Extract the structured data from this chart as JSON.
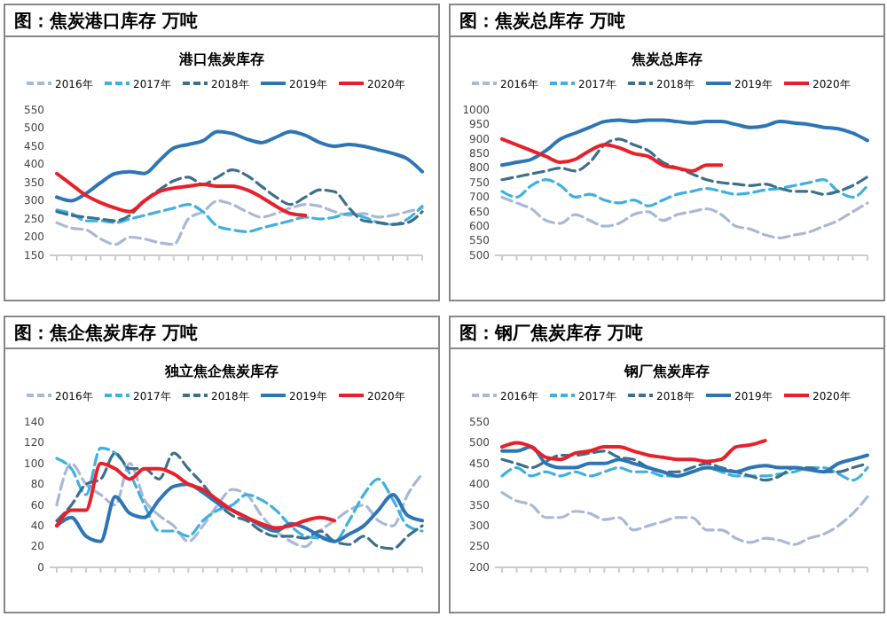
{
  "chart_data": [
    {
      "type": "line",
      "title": "图：焦炭港口库存 万吨",
      "subtitle": "港口焦炭库存",
      "categories": [
        null,
        null,
        null,
        null,
        null,
        null,
        null,
        null,
        null,
        null,
        null,
        null,
        null,
        null,
        null,
        null,
        null,
        null,
        null,
        null,
        null,
        null,
        null,
        null,
        null,
        null
      ],
      "ylim": [
        150,
        550
      ],
      "yticks": [
        150,
        200,
        250,
        300,
        350,
        400,
        450,
        500,
        550
      ],
      "tick_labels": "y",
      "legend": "top",
      "grid": false,
      "marker": "none",
      "series": [
        {
          "name": "2016年",
          "color": "#a9b8d6",
          "line_style": "dashed",
          "values": [
            240,
            225,
            220,
            195,
            180,
            200,
            195,
            185,
            180,
            250,
            270,
            300,
            290,
            270,
            255,
            265,
            280,
            290,
            285,
            270,
            260,
            265,
            255,
            260,
            270,
            280
          ]
        },
        {
          "name": "2017年",
          "color": "#3fb0e0",
          "line_style": "dashed",
          "values": [
            275,
            265,
            245,
            245,
            240,
            250,
            260,
            270,
            280,
            290,
            270,
            230,
            220,
            215,
            225,
            235,
            245,
            255,
            250,
            255,
            265,
            255,
            240,
            235,
            250,
            285
          ]
        },
        {
          "name": "2018年",
          "color": "#3d6f8c",
          "line_style": "dashed",
          "values": [
            270,
            260,
            255,
            250,
            245,
            260,
            300,
            330,
            355,
            365,
            345,
            365,
            385,
            370,
            340,
            310,
            290,
            310,
            330,
            325,
            280,
            245,
            240,
            235,
            240,
            270
          ]
        },
        {
          "name": "2019年",
          "color": "#2e75b6",
          "line_style": "solid",
          "values": [
            310,
            300,
            320,
            350,
            375,
            380,
            375,
            410,
            445,
            455,
            465,
            490,
            485,
            470,
            460,
            475,
            490,
            480,
            460,
            450,
            455,
            450,
            440,
            430,
            415,
            380
          ]
        },
        {
          "name": "2020年",
          "color": "#e8202a",
          "line_style": "solid",
          "values": [
            375,
            345,
            315,
            295,
            280,
            270,
            300,
            325,
            335,
            340,
            345,
            340,
            340,
            330,
            310,
            285,
            265,
            260,
            null,
            null,
            null,
            null,
            null,
            null,
            null,
            null
          ]
        }
      ]
    },
    {
      "type": "line",
      "title": "图：焦炭总库存 万吨",
      "subtitle": "焦炭总库存",
      "categories": [
        null,
        null,
        null,
        null,
        null,
        null,
        null,
        null,
        null,
        null,
        null,
        null,
        null,
        null,
        null,
        null,
        null,
        null,
        null,
        null,
        null,
        null,
        null,
        null,
        null,
        null
      ],
      "ylim": [
        500,
        1000
      ],
      "yticks": [
        500,
        550,
        600,
        650,
        700,
        750,
        800,
        850,
        900,
        950,
        1000
      ],
      "tick_labels": "y",
      "legend": "top",
      "grid": false,
      "marker": "none",
      "series": [
        {
          "name": "2016年",
          "color": "#a9b8d6",
          "line_style": "dashed",
          "values": [
            700,
            680,
            660,
            620,
            610,
            640,
            620,
            600,
            610,
            640,
            650,
            620,
            640,
            650,
            660,
            640,
            600,
            590,
            570,
            560,
            570,
            580,
            600,
            620,
            650,
            680
          ]
        },
        {
          "name": "2017年",
          "color": "#3fb0e0",
          "line_style": "dashed",
          "values": [
            720,
            700,
            740,
            760,
            740,
            700,
            710,
            690,
            680,
            690,
            670,
            690,
            710,
            720,
            730,
            720,
            710,
            715,
            725,
            730,
            740,
            750,
            760,
            720,
            700,
            740
          ]
        },
        {
          "name": "2018年",
          "color": "#3d6f8c",
          "line_style": "dashed",
          "values": [
            760,
            770,
            780,
            790,
            800,
            790,
            820,
            880,
            900,
            880,
            860,
            820,
            800,
            780,
            760,
            750,
            745,
            740,
            745,
            730,
            720,
            720,
            710,
            720,
            740,
            770
          ]
        },
        {
          "name": "2019年",
          "color": "#2e75b6",
          "line_style": "solid",
          "values": [
            810,
            820,
            830,
            860,
            900,
            920,
            940,
            960,
            965,
            960,
            965,
            965,
            960,
            955,
            960,
            960,
            950,
            940,
            945,
            960,
            955,
            950,
            940,
            935,
            920,
            895
          ]
        },
        {
          "name": "2020年",
          "color": "#e8202a",
          "line_style": "solid",
          "values": [
            900,
            880,
            860,
            840,
            820,
            830,
            860,
            880,
            870,
            850,
            840,
            810,
            800,
            790,
            810,
            810,
            null,
            null,
            null,
            null,
            null,
            null,
            null,
            null,
            null,
            null
          ]
        }
      ]
    },
    {
      "type": "line",
      "title": "图：焦企焦炭库存 万吨",
      "subtitle": "独立焦企焦炭库存",
      "categories": [
        null,
        null,
        null,
        null,
        null,
        null,
        null,
        null,
        null,
        null,
        null,
        null,
        null,
        null,
        null,
        null,
        null,
        null,
        null,
        null,
        null,
        null,
        null,
        null,
        null,
        null
      ],
      "ylim": [
        0,
        140
      ],
      "yticks": [
        0,
        20,
        40,
        60,
        80,
        100,
        120,
        140
      ],
      "tick_labels": "y",
      "legend": "top",
      "grid": false,
      "marker": "none",
      "series": [
        {
          "name": "2016年",
          "color": "#a9b8d6",
          "line_style": "dashed",
          "values": [
            60,
            100,
            80,
            70,
            60,
            100,
            65,
            50,
            40,
            25,
            40,
            60,
            75,
            70,
            50,
            35,
            25,
            20,
            35,
            45,
            55,
            60,
            45,
            40,
            70,
            90
          ]
        },
        {
          "name": "2017年",
          "color": "#3fb0e0",
          "line_style": "dashed",
          "values": [
            105,
            95,
            70,
            115,
            110,
            90,
            60,
            35,
            35,
            30,
            45,
            55,
            60,
            70,
            65,
            55,
            40,
            30,
            28,
            25,
            45,
            70,
            85,
            65,
            40,
            35
          ]
        },
        {
          "name": "2018年",
          "color": "#3d6f8c",
          "line_style": "dashed",
          "values": [
            45,
            60,
            80,
            85,
            110,
            95,
            95,
            85,
            110,
            95,
            80,
            62,
            50,
            45,
            35,
            30,
            30,
            28,
            35,
            25,
            22,
            30,
            20,
            18,
            30,
            40
          ]
        },
        {
          "name": "2019年",
          "color": "#2e75b6",
          "line_style": "solid",
          "values": [
            40,
            48,
            30,
            25,
            68,
            52,
            48,
            65,
            78,
            80,
            72,
            62,
            55,
            48,
            40,
            35,
            42,
            38,
            30,
            25,
            32,
            40,
            55,
            70,
            50,
            45
          ]
        },
        {
          "name": "2020年",
          "color": "#e8202a",
          "line_style": "solid",
          "values": [
            40,
            55,
            55,
            100,
            95,
            85,
            95,
            95,
            90,
            80,
            75,
            65,
            55,
            48,
            42,
            38,
            40,
            45,
            48,
            45,
            null,
            null,
            null,
            null,
            null,
            null
          ]
        }
      ]
    },
    {
      "type": "line",
      "title": "图：钢厂焦炭库存 万吨",
      "subtitle": "钢厂焦炭库存",
      "categories": [
        null,
        null,
        null,
        null,
        null,
        null,
        null,
        null,
        null,
        null,
        null,
        null,
        null,
        null,
        null,
        null,
        null,
        null,
        null,
        null,
        null,
        null,
        null,
        null,
        null,
        null
      ],
      "ylim": [
        200,
        550
      ],
      "yticks": [
        200,
        250,
        300,
        350,
        400,
        450,
        500,
        550
      ],
      "tick_labels": "y",
      "legend": "top",
      "grid": false,
      "marker": "none",
      "series": [
        {
          "name": "2016年",
          "color": "#a9b8d6",
          "line_style": "dashed",
          "values": [
            380,
            360,
            350,
            320,
            320,
            335,
            330,
            315,
            320,
            290,
            300,
            310,
            320,
            320,
            290,
            290,
            270,
            260,
            270,
            265,
            255,
            270,
            280,
            300,
            330,
            370
          ]
        },
        {
          "name": "2017年",
          "color": "#3fb0e0",
          "line_style": "dashed",
          "values": [
            420,
            440,
            420,
            430,
            420,
            430,
            420,
            430,
            440,
            430,
            430,
            420,
            420,
            430,
            440,
            430,
            420,
            420,
            420,
            425,
            430,
            440,
            440,
            425,
            410,
            440
          ]
        },
        {
          "name": "2018年",
          "color": "#3d6f8c",
          "line_style": "dashed",
          "values": [
            460,
            450,
            440,
            455,
            470,
            470,
            475,
            480,
            465,
            460,
            440,
            430,
            430,
            440,
            450,
            440,
            430,
            420,
            410,
            420,
            440,
            440,
            430,
            430,
            440,
            450
          ]
        },
        {
          "name": "2019年",
          "color": "#2e75b6",
          "line_style": "solid",
          "values": [
            480,
            480,
            490,
            450,
            440,
            440,
            450,
            450,
            460,
            450,
            440,
            430,
            420,
            430,
            440,
            435,
            430,
            440,
            445,
            440,
            440,
            435,
            430,
            450,
            460,
            470
          ]
        },
        {
          "name": "2020年",
          "color": "#e8202a",
          "line_style": "solid",
          "values": [
            490,
            500,
            490,
            465,
            460,
            475,
            480,
            490,
            490,
            480,
            470,
            465,
            460,
            460,
            455,
            460,
            490,
            495,
            505,
            null,
            null,
            null,
            null,
            null,
            null,
            null
          ]
        }
      ]
    }
  ]
}
